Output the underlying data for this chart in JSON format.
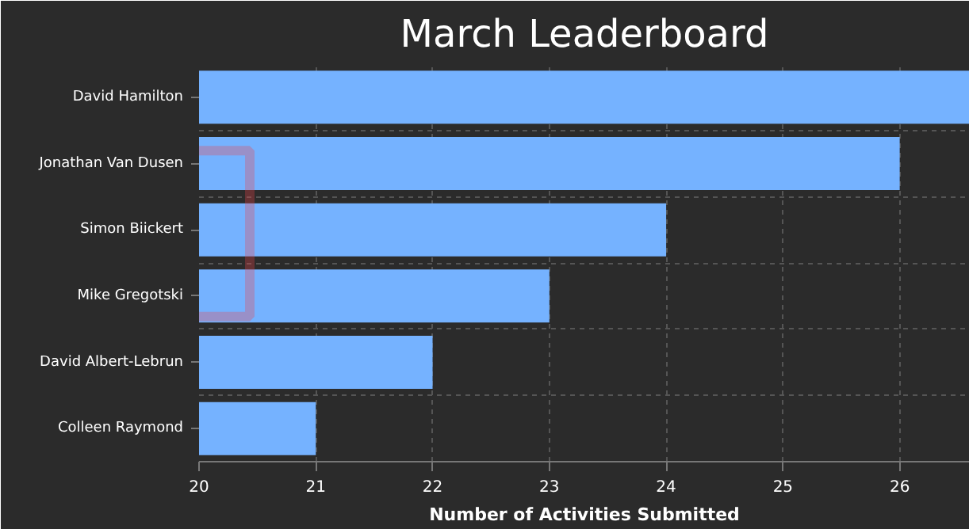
{
  "chart_data": {
    "type": "bar",
    "orientation": "horizontal",
    "title": "March Leaderboard",
    "xlabel": "Number of Activities Submitted",
    "categories": [
      "David Hamilton",
      "Jonathan Van Dusen",
      "Simon Biickert",
      "Mike Gregotski",
      "David Albert-Lebrun",
      "Colleen Raymond"
    ],
    "values": [
      26.6,
      26,
      24,
      23,
      22,
      21
    ],
    "color": "#75b2ff",
    "xlim": [
      20,
      26.6
    ],
    "xticks": [
      20,
      21,
      22,
      23,
      24,
      25,
      26
    ],
    "grid": true
  }
}
